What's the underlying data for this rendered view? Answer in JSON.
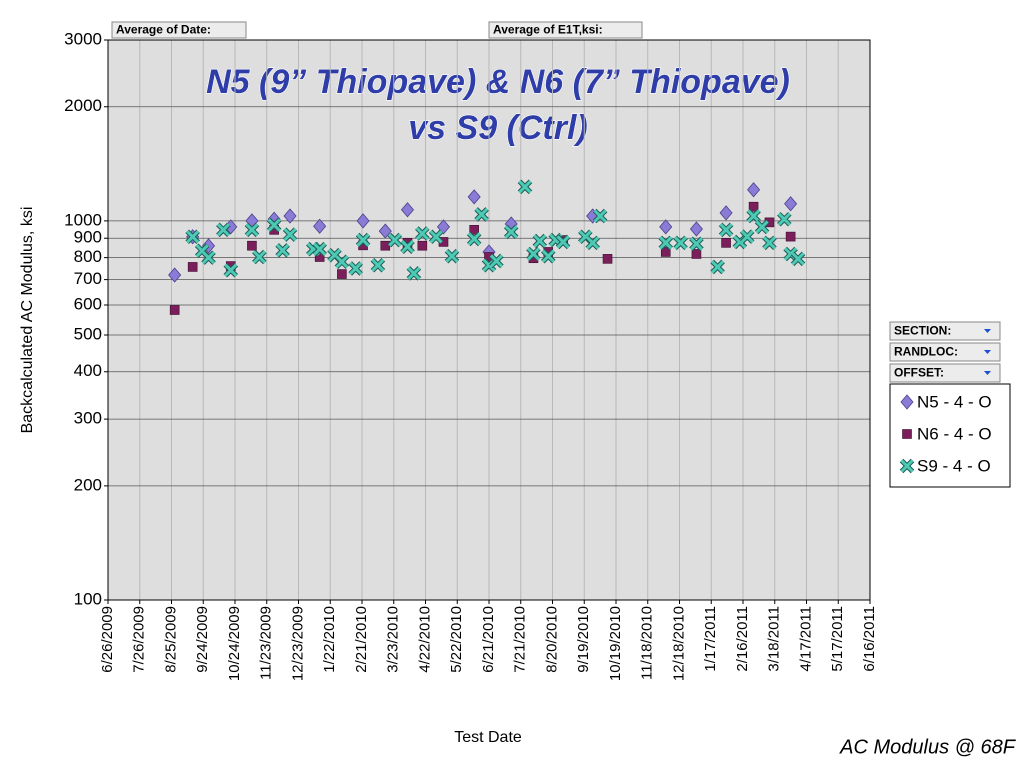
{
  "chart_data": {
    "type": "scatter",
    "title": [
      "N5 (9” Thiopave) & N6 (7” Thiopave)",
      "vs S9 (Ctrl)"
    ],
    "xlabel": "Test Date",
    "ylabel": "Backcalculated AC Modulus, ksi",
    "footnote": "AC Modulus @ 68F",
    "field_buttons": [
      "Average of Date:",
      "Average of E1T,ksi:"
    ],
    "filter_buttons": [
      "SECTION:",
      "RANDLOC:",
      "OFFSET:"
    ],
    "log_y": true,
    "grid": true,
    "ylim": [
      100,
      3000
    ],
    "yticks": [
      100,
      200,
      300,
      400,
      500,
      600,
      700,
      800,
      900,
      1000,
      2000,
      3000
    ],
    "xlim": [
      "6/26/2009",
      "6/16/2011"
    ],
    "xticks": [
      "6/26/2009",
      "7/26/2009",
      "8/25/2009",
      "9/24/2009",
      "10/24/2009",
      "11/23/2009",
      "12/23/2009",
      "1/22/2010",
      "2/21/2010",
      "3/23/2010",
      "4/22/2010",
      "5/22/2010",
      "6/21/2010",
      "7/21/2010",
      "8/20/2010",
      "9/19/2010",
      "10/19/2010",
      "11/18/2010",
      "12/18/2010",
      "1/17/2011",
      "2/16/2011",
      "3/18/2011",
      "4/17/2011",
      "5/17/2011",
      "6/16/2011"
    ],
    "series": [
      {
        "name": "N5 - 4 - O",
        "color": "#8a7bd6",
        "marker": "diamond",
        "x": [
          "8/28/2009",
          "9/14/2009",
          "9/29/2009",
          "10/20/2009",
          "11/9/2009",
          "11/30/2009",
          "12/15/2009",
          "1/12/2010",
          "2/22/2010",
          "3/15/2010",
          "4/5/2010",
          "5/9/2010",
          "6/7/2010",
          "6/21/2010",
          "7/12/2010",
          "9/27/2010",
          "12/5/2010",
          "1/3/2011",
          "1/31/2011",
          "2/26/2011",
          "4/2/2011"
        ],
        "values": [
          720,
          908,
          859,
          964,
          1000,
          1010,
          1030,
          968,
          1000,
          940,
          1070,
          964,
          1157,
          828,
          981,
          1030,
          964,
          952,
          1050,
          1208,
          1110
        ]
      },
      {
        "name": "N6 - 4 - O",
        "color": "#7a1f5c",
        "marker": "square",
        "x": [
          "8/28/2009",
          "9/14/2009",
          "10/20/2009",
          "11/9/2009",
          "11/30/2009",
          "1/12/2010",
          "2/2/2010",
          "2/22/2010",
          "3/15/2010",
          "4/5/2010",
          "4/19/2010",
          "5/9/2010",
          "6/7/2010",
          "6/21/2010",
          "8/2/2010",
          "8/16/2010",
          "8/30/2010",
          "10/11/2010",
          "12/5/2010",
          "1/3/2011",
          "1/31/2011",
          "2/26/2011",
          "3/13/2011",
          "4/2/2011"
        ],
        "values": [
          582,
          756,
          760,
          860,
          947,
          803,
          724,
          862,
          860,
          875,
          860,
          880,
          947,
          803,
          797,
          828,
          890,
          794,
          828,
          818,
          875,
          1090,
          991,
          909
        ]
      },
      {
        "name": "S9 - 4 - O",
        "color": "#4ccab5",
        "marker": "x",
        "x": [
          "9/14/2009",
          "9/23/2009",
          "9/29/2009",
          "10/13/2009",
          "10/20/2009",
          "11/9/2009",
          "11/16/2009",
          "11/30/2009",
          "12/8/2009",
          "12/15/2009",
          "1/6/2010",
          "1/12/2010",
          "1/26/2010",
          "2/2/2010",
          "2/15/2010",
          "2/22/2010",
          "3/8/2010",
          "3/24/2010",
          "4/5/2010",
          "4/11/2010",
          "4/19/2010",
          "5/2/2010",
          "5/17/2010",
          "6/7/2010",
          "6/14/2010",
          "6/21/2010",
          "6/28/2010",
          "7/12/2010",
          "7/25/2010",
          "8/2/2010",
          "8/8/2010",
          "8/16/2010",
          "8/23/2010",
          "8/30/2010",
          "9/20/2010",
          "9/27/2010",
          "10/4/2010",
          "12/5/2010",
          "12/19/2010",
          "1/3/2011",
          "1/23/2011",
          "1/31/2011",
          "2/13/2011",
          "2/20/2011",
          "2/26/2011",
          "3/6/2011",
          "3/13/2011",
          "3/27/2011",
          "4/2/2011",
          "4/9/2011"
        ],
        "values": [
          908,
          834,
          800,
          947,
          741,
          947,
          803,
          975,
          836,
          920,
          842,
          842,
          812,
          780,
          749,
          890,
          764,
          890,
          855,
          727,
          926,
          908,
          807,
          896,
          1040,
          764,
          784,
          935,
          1230,
          818,
          885,
          807,
          890,
          880,
          908,
          875,
          1030,
          875,
          875,
          870,
          756,
          947,
          880,
          909,
          1030,
          964,
          875,
          1010,
          818,
          794
        ]
      }
    ]
  }
}
